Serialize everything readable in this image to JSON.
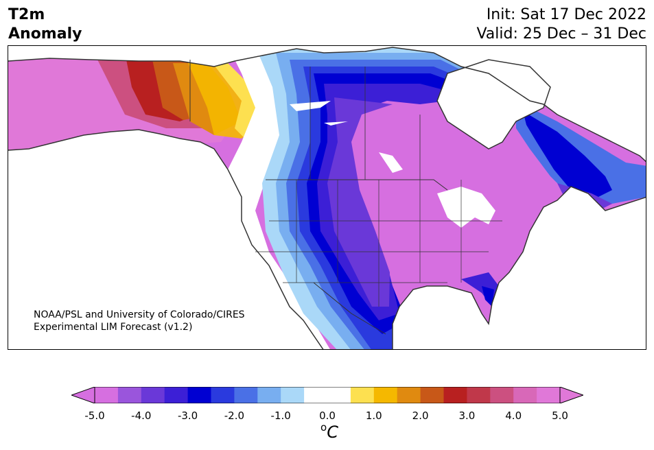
{
  "header": {
    "title_line1": "T2m",
    "title_line2": "Anomaly",
    "init_text": "Init: Sat 17 Dec 2022",
    "valid_text": "Valid: 25 Dec – 31 Dec"
  },
  "credit": {
    "line1": "NOAA/PSL and University of Colorado/CIRES",
    "line2": "Experimental LIM Forecast (v1.2)"
  },
  "colorbar": {
    "unit_base": "C",
    "unit_sup": "o",
    "ticks": [
      "-5.0",
      "-4.0",
      "-3.0",
      "-2.0",
      "-1.0",
      "0.0",
      "1.0",
      "2.0",
      "3.0",
      "4.0",
      "5.0"
    ],
    "colors": {
      "neg_extreme": "#d66fe0",
      "levels": [
        "#d66fe0",
        "#9a55dc",
        "#6a38d8",
        "#3c1fd6",
        "#0000d2",
        "#2a3ade",
        "#4a70e6",
        "#78aef0",
        "#aad8f8",
        "#ffffff",
        "#ffffff",
        "#fde050",
        "#f5b800",
        "#e08a10",
        "#c85818",
        "#b82020",
        "#c0384a",
        "#cc5080",
        "#d868b8",
        "#e078d8"
      ],
      "pos_extreme": "#e078d8"
    }
  },
  "map": {
    "region": "North America",
    "colors": {
      "strong_warm": "#d868c8",
      "warm_red": "#b82020",
      "warm_orange": "#d86a18",
      "warm_yellow": "#f5b800",
      "light_yellow": "#fde050",
      "neutral": "#ffffff",
      "cold_light": "#aad8f8",
      "cold_mid": "#4a70e6",
      "cold_deep": "#0000d2",
      "cold_violet": "#6a38d8",
      "strong_cold": "#d66fe0",
      "lines": "#333333"
    }
  }
}
